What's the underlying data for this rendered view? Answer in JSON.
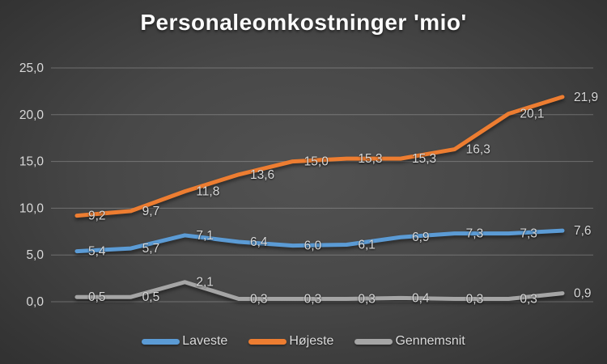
{
  "title": "Personaleomkostninger 'mio'",
  "colors": {
    "background_center": "#525252",
    "background_edge": "#262626",
    "title_text": "#fbfbfb",
    "axis_text": "#d9d9d9",
    "data_label_text": "#d8d8d8",
    "gridline": "rgba(217,217,217,0.30)"
  },
  "chart_data": {
    "type": "line",
    "title": "Personaleomkostninger 'mio'",
    "ylim": [
      0,
      25
    ],
    "grid": true,
    "legend_position": "bottom",
    "x_axis_labels_visible": false,
    "yticks": [
      {
        "value": 0,
        "label": "0,0"
      },
      {
        "value": 5,
        "label": "5,0"
      },
      {
        "value": 10,
        "label": "10,0"
      },
      {
        "value": 15,
        "label": "15,0"
      },
      {
        "value": 20,
        "label": "20,0"
      },
      {
        "value": 25,
        "label": "25,0"
      }
    ],
    "series": [
      {
        "name": "Laveste",
        "color": "#5B9BD5",
        "values": [
          5.4,
          5.7,
          7.1,
          6.4,
          6.0,
          6.1,
          6.9,
          7.3,
          7.3,
          7.6
        ],
        "point_labels": [
          "5,4",
          "5,7",
          "7,1",
          "6,4",
          "6,0",
          "6,1",
          "6,9",
          "7,3",
          "7,3",
          "7,6"
        ]
      },
      {
        "name": "Højeste",
        "color": "#ED7D31",
        "values": [
          9.2,
          9.7,
          11.8,
          13.6,
          15.0,
          15.3,
          15.3,
          16.3,
          20.1,
          21.9
        ],
        "point_labels": [
          "9,2",
          "9,7",
          "11,8",
          "13,6",
          "15,0",
          "15,3",
          "15,3",
          "16,3",
          "20,1",
          "21,9"
        ]
      },
      {
        "name": "Gennemsnit",
        "color": "#A5A5A5",
        "values": [
          0.5,
          0.5,
          2.1,
          0.3,
          0.3,
          0.3,
          0.4,
          0.3,
          0.3,
          0.9
        ],
        "point_labels": [
          "0,5",
          "0,5",
          "2,1",
          "0,3",
          "0,3",
          "0,3",
          "0,4",
          "0,3",
          "0,3",
          "0,9"
        ]
      }
    ]
  }
}
